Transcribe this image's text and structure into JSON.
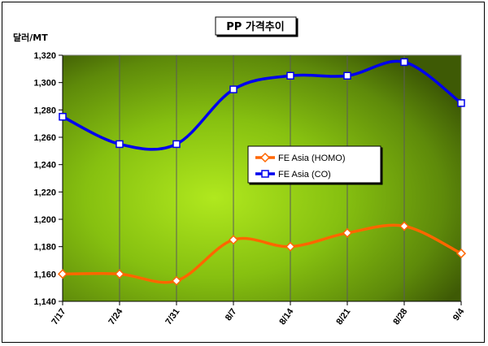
{
  "chart_data": {
    "type": "line",
    "title": "PP 가격추이",
    "ylabel": "달러/MT",
    "xlabel": "",
    "categories": [
      "7/17",
      "7/24",
      "7/31",
      "8/7",
      "8/14",
      "8/21",
      "8/28",
      "9/4"
    ],
    "ylim": [
      1140,
      1320
    ],
    "yticks": [
      1140,
      1160,
      1180,
      1200,
      1220,
      1240,
      1260,
      1280,
      1300,
      1320
    ],
    "ytick_labels": [
      "1,140",
      "1,160",
      "1,180",
      "1,200",
      "1,220",
      "1,240",
      "1,260",
      "1,280",
      "1,300",
      "1,320"
    ],
    "grid": "vertical",
    "legend_position": "center-right",
    "series": [
      {
        "name": "FE Asia (HOMO)",
        "color": "#FF6600",
        "marker": "diamond",
        "values": [
          1160,
          1160,
          1155,
          1185,
          1180,
          1190,
          1195,
          1175
        ]
      },
      {
        "name": "FE Asia (CO)",
        "color": "#0000EE",
        "marker": "square",
        "values": [
          1275,
          1255,
          1255,
          1295,
          1305,
          1305,
          1315,
          1285
        ]
      }
    ]
  }
}
